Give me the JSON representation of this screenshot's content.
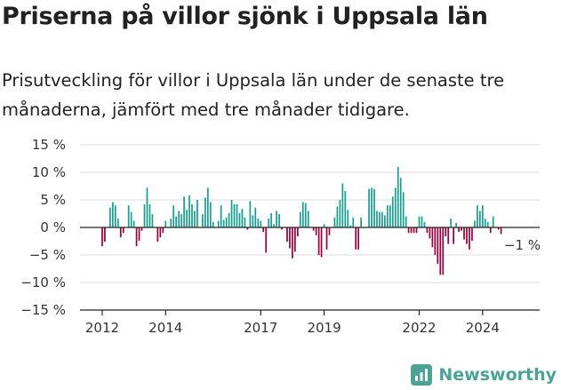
{
  "header": {
    "title": "Priserna på villor sjönk i Uppsala län",
    "subtitle": "Prisutveckling för villor i Uppsala län under de senaste tre månaderna, jämfört med tre månader tidigare."
  },
  "brand": {
    "name": "Newsworthy",
    "icon": "newsworthy-logo-icon",
    "color": "#4aa396"
  },
  "chart_data": {
    "type": "bar",
    "title": "",
    "xlabel": "",
    "ylabel": "",
    "ylim": [
      -15,
      15
    ],
    "y_ticks": [
      15,
      10,
      5,
      0,
      -5,
      -10,
      -15
    ],
    "y_tick_labels": [
      "15 %",
      "10 %",
      "5 %",
      "0 %",
      "−5 %",
      "−10 %",
      "−15 %"
    ],
    "x_range": [
      2011.3,
      2025.8
    ],
    "x_ticks": [
      2012,
      2014,
      2017,
      2019,
      2022,
      2024
    ],
    "x_tick_labels": [
      "2012",
      "2014",
      "2017",
      "2019",
      "2022",
      "2024"
    ],
    "grid": "horizontal",
    "legend": "none",
    "colors": {
      "positive": "#1a9e8f",
      "negative": "#99003f",
      "grid": "#dddddd",
      "axis": "#222222"
    },
    "series": [
      {
        "start": 2012.0,
        "step_months": 1,
        "values": [
          -3.4,
          -2.6,
          0,
          3.6,
          4.6,
          4.0,
          1.6,
          -1.8,
          -1.0,
          0,
          4.0,
          2.8,
          1.2,
          -3.4,
          -2.4,
          -0.6,
          4.2,
          7.2,
          4.2,
          2.4,
          0,
          -2.6,
          -1.8,
          -1.0,
          1.2,
          0,
          1.6,
          4.0,
          2.0,
          3.0,
          2.4,
          5.6,
          3.2,
          5.8,
          4.2,
          3.0,
          5.0,
          0,
          2.4,
          5.4,
          7.2,
          4.6,
          1.0,
          0,
          1.2,
          4.0,
          1.4,
          1.8,
          2.6,
          5.0,
          4.2,
          4.2,
          2.6,
          3.4,
          1.8,
          -0.4,
          4.8,
          2.2,
          3.6,
          1.6,
          1.2,
          -0.8,
          -4.6,
          1.6,
          2.6,
          0.6,
          3.0,
          2.4,
          -0.4,
          0,
          -2.6,
          -3.8,
          -5.6,
          -4.4,
          -1.6,
          2.8,
          4.6,
          4.4,
          3.0,
          0,
          -0.6,
          -1.4,
          -5.0,
          -5.4,
          0.6,
          -4.0,
          -1.4,
          0,
          1.8,
          3.8,
          5.0,
          8.0,
          6.6,
          3.2,
          0.4,
          1.8,
          -4.0,
          -4.0,
          1.8,
          0,
          0,
          7.0,
          7.2,
          7.0,
          3.0,
          2.8,
          2.8,
          2.2,
          4.0,
          4.0,
          5.6,
          7.2,
          11.0,
          9.0,
          6.4,
          2.0,
          -1.0,
          -1.0,
          -1.0,
          -1.0,
          2.0,
          2.0,
          1.0,
          -1.0,
          -2.0,
          -3.6,
          -5.0,
          -6.6,
          -8.6,
          -8.6,
          -1.6,
          -3.0,
          1.6,
          -3.0,
          0.8,
          -0.8,
          -0.6,
          -2.2,
          -3.0,
          -4.0,
          -2.4,
          1.2,
          4.0,
          3.0,
          4.0,
          1.6,
          1.0,
          -1.0,
          2.0,
          0,
          -0.4,
          -1.2
        ]
      }
    ],
    "annotations": [
      {
        "label": "−1 %",
        "x": 2024.9,
        "y": -1.0
      }
    ]
  }
}
